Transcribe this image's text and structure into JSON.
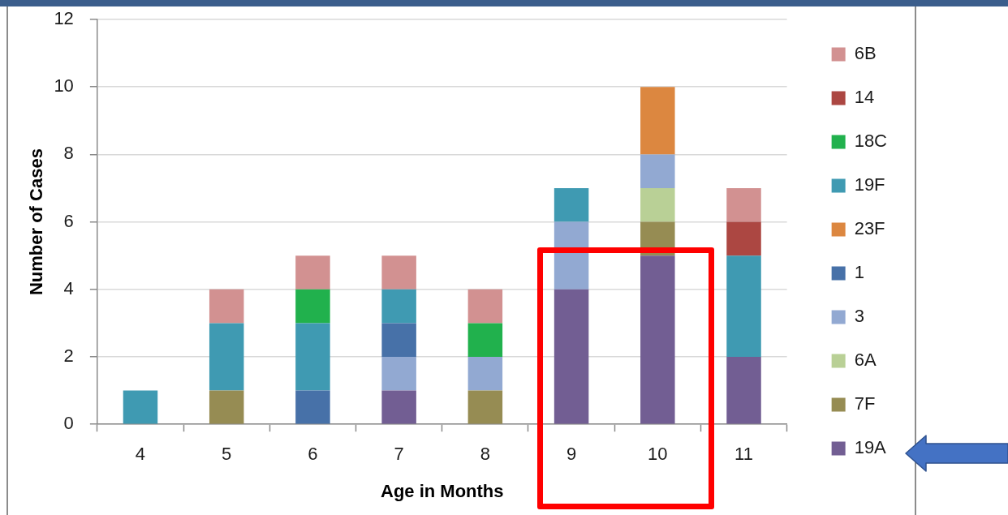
{
  "chart_data": {
    "type": "bar",
    "stacked": true,
    "xlabel": "Age in Months",
    "ylabel": "Number of Cases",
    "categories": [
      "4",
      "5",
      "6",
      "7",
      "8",
      "9",
      "10",
      "11"
    ],
    "series": [
      {
        "name": "19A",
        "color": "#725e93",
        "values": [
          0,
          0,
          0,
          1,
          0,
          4,
          5,
          2
        ]
      },
      {
        "name": "7F",
        "color": "#968c53",
        "values": [
          0,
          1,
          0,
          0,
          1,
          0,
          1,
          0
        ]
      },
      {
        "name": "6A",
        "color": "#b9d096",
        "values": [
          0,
          0,
          0,
          0,
          0,
          0,
          1,
          0
        ]
      },
      {
        "name": "3",
        "color": "#92a9d2",
        "values": [
          0,
          0,
          0,
          1,
          1,
          2,
          1,
          0
        ]
      },
      {
        "name": "1",
        "color": "#4771a8",
        "values": [
          0,
          0,
          1,
          1,
          0,
          0,
          0,
          0
        ]
      },
      {
        "name": "23F",
        "color": "#dc8740",
        "values": [
          0,
          0,
          0,
          0,
          0,
          0,
          2,
          0
        ]
      },
      {
        "name": "19F",
        "color": "#3f9ab2",
        "values": [
          1,
          2,
          2,
          1,
          0,
          1,
          0,
          3
        ]
      },
      {
        "name": "18C",
        "color": "#21b14d",
        "values": [
          0,
          0,
          1,
          0,
          1,
          0,
          0,
          0
        ]
      },
      {
        "name": "14",
        "color": "#ac4742",
        "values": [
          0,
          0,
          0,
          0,
          0,
          0,
          0,
          1
        ]
      },
      {
        "name": "6B",
        "color": "#d29191",
        "values": [
          0,
          1,
          1,
          1,
          1,
          0,
          0,
          1
        ]
      }
    ],
    "ylim": [
      0,
      12
    ],
    "yticks": [
      0,
      2,
      4,
      6,
      8,
      10,
      12
    ],
    "grid": "y",
    "legend": "right"
  }
}
